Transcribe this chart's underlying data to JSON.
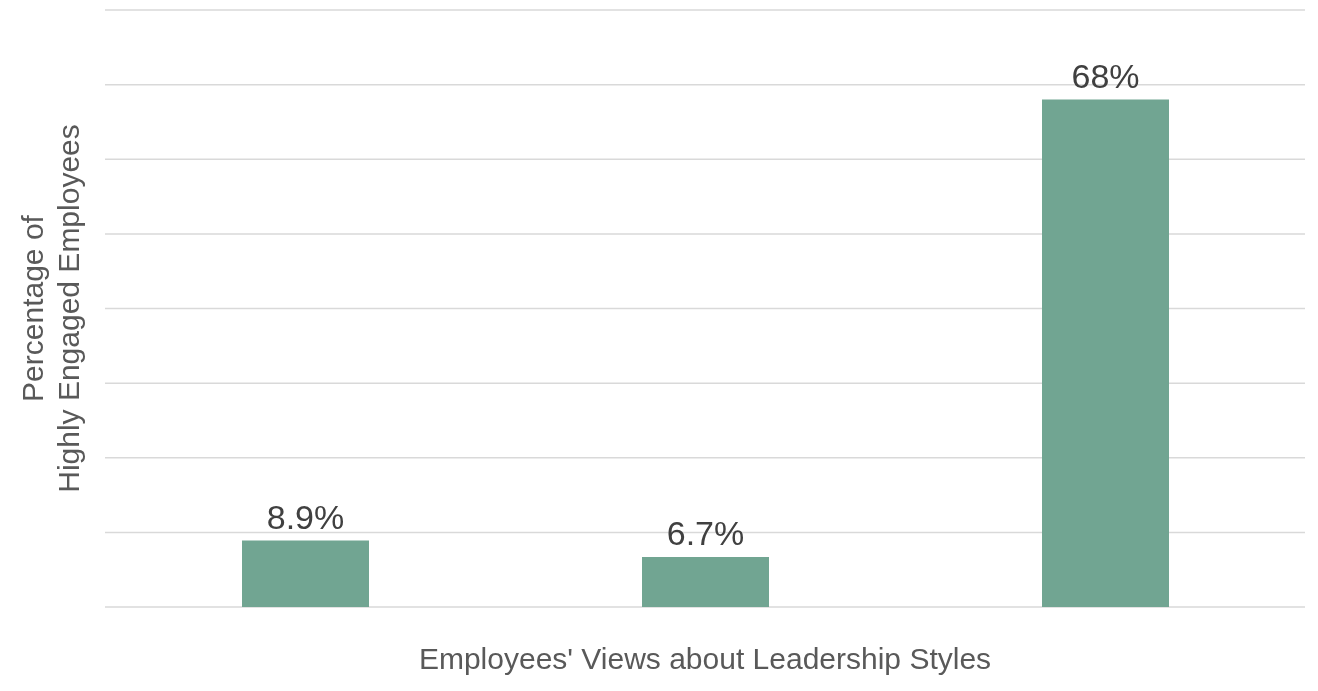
{
  "chart_data": {
    "type": "bar",
    "xlabel": "Employees' Views about Leadership Styles",
    "ylabel": "Percentage of\nHighly Engaged Employees",
    "categories": [
      null,
      null,
      null
    ],
    "values": [
      8.9,
      6.7,
      68
    ],
    "value_labels": [
      "8.9%",
      "6.7%",
      "68%"
    ],
    "color": "#71a592",
    "ylim": [
      0,
      80
    ],
    "grid": "y"
  }
}
